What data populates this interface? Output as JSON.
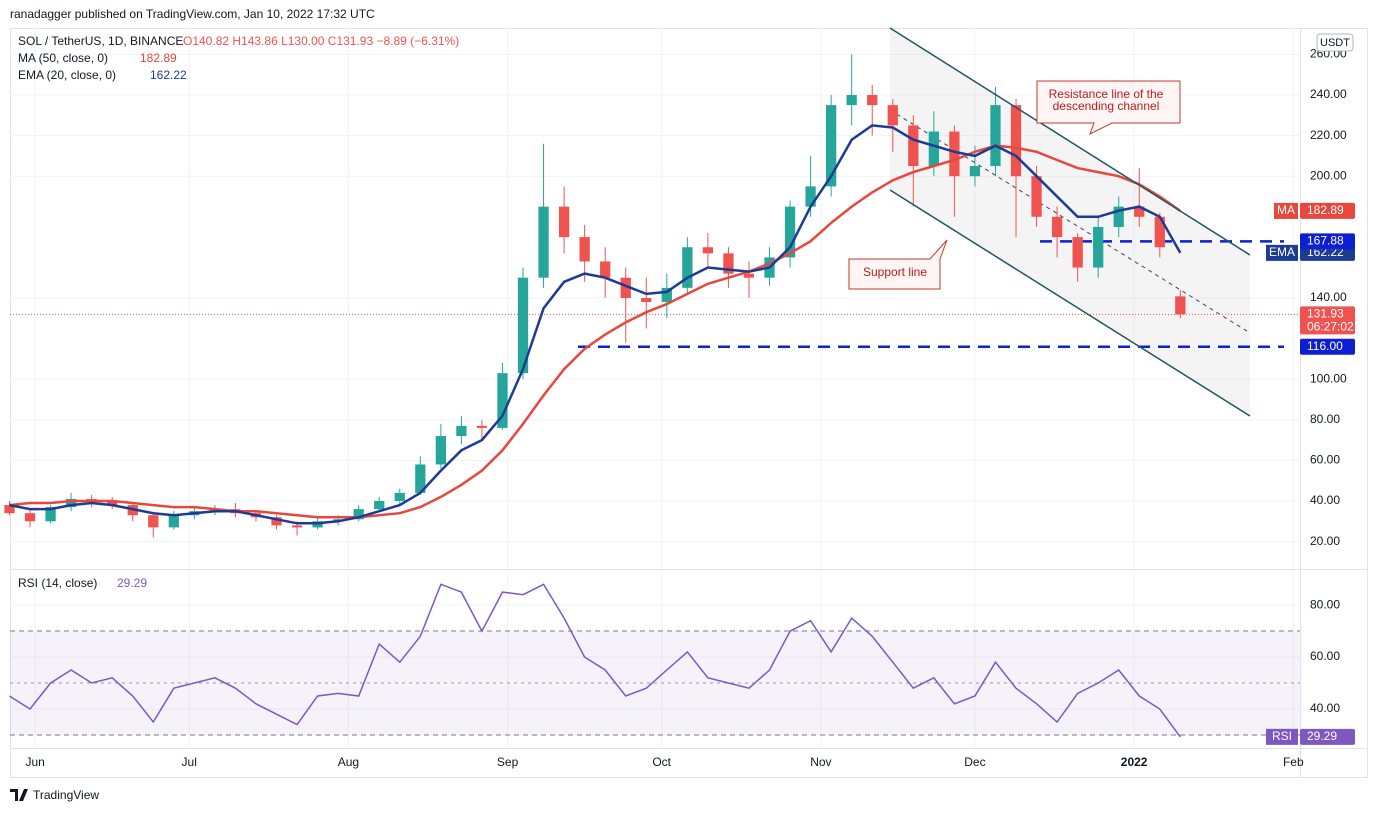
{
  "header": {
    "title": "ranadagger published on TradingView.com, Jan 10, 2022 17:32 UTC",
    "brand": "TradingView"
  },
  "chart_data": [
    {
      "type": "candlestick",
      "title": "SOL / TetherUS, 1D, BINANCE",
      "ohlc_label": "O140.82 H143.86 L130.00 C131.93 −8.89 (−6.31%)",
      "currency": "USDT",
      "x": [
        -5,
        -1,
        3,
        7,
        11,
        15,
        19,
        23,
        27,
        31,
        35,
        39,
        43,
        47,
        51,
        55,
        59,
        63,
        67,
        71,
        75,
        79,
        83,
        87,
        91,
        95,
        99,
        103,
        107,
        111,
        115,
        119,
        123,
        127,
        131,
        135,
        139,
        143,
        147,
        151,
        155,
        159,
        163,
        167,
        171,
        175,
        179,
        183,
        187,
        191,
        195,
        199,
        203,
        207,
        211,
        215,
        219,
        223
      ],
      "open": [
        38,
        34,
        30,
        37,
        41,
        40,
        38,
        33,
        27,
        33,
        35,
        36,
        34,
        32,
        28,
        27,
        30,
        31,
        36,
        40,
        44,
        58,
        72,
        77,
        76,
        103,
        150,
        185,
        170,
        158,
        150,
        140,
        138,
        145,
        165,
        162,
        152,
        150,
        160,
        185,
        195,
        235,
        240,
        235,
        225,
        205,
        222,
        200,
        205,
        235,
        200,
        180,
        170,
        155,
        175,
        185,
        180,
        140.82
      ],
      "high": [
        40,
        36,
        38,
        44,
        43,
        42,
        39,
        34,
        35,
        37,
        38,
        39,
        35,
        33,
        30,
        32,
        33,
        38,
        42,
        46,
        62,
        78,
        82,
        80,
        108,
        155,
        216,
        195,
        176,
        165,
        155,
        150,
        152,
        170,
        172,
        165,
        158,
        165,
        188,
        210,
        240,
        260,
        245,
        238,
        230,
        232,
        225,
        215,
        244,
        238,
        205,
        185,
        172,
        180,
        190,
        204,
        182,
        143.86
      ],
      "low": [
        33,
        27,
        29,
        35,
        37,
        36,
        30,
        22,
        26,
        31,
        33,
        32,
        30,
        26,
        23,
        26,
        28,
        30,
        35,
        38,
        43,
        56,
        68,
        70,
        75,
        100,
        145,
        162,
        148,
        140,
        118,
        125,
        130,
        142,
        155,
        145,
        140,
        146,
        155,
        180,
        190,
        225,
        220,
        212,
        185,
        200,
        180,
        195,
        200,
        170,
        175,
        160,
        148,
        150,
        170,
        175,
        160,
        130
      ],
      "close": [
        34,
        30,
        37,
        41,
        40,
        38,
        33,
        27,
        33,
        35,
        36,
        34,
        32,
        28,
        27,
        30,
        31,
        36,
        40,
        44,
        58,
        72,
        77,
        76,
        103,
        150,
        185,
        170,
        158,
        150,
        140,
        138,
        145,
        165,
        162,
        152,
        150,
        160,
        185,
        195,
        235,
        240,
        235,
        225,
        205,
        222,
        200,
        205,
        235,
        200,
        180,
        170,
        155,
        175,
        185,
        180,
        165,
        131.93
      ],
      "up_color": "#26a69a",
      "down_color": "#ef5350",
      "series": [
        {
          "name": "MA (50, close, 0)",
          "tag": "MA",
          "color": "#e8473c",
          "values": [
            38,
            39,
            39,
            40,
            40,
            40,
            39,
            38,
            37,
            37,
            36,
            35,
            35,
            34,
            33,
            32,
            32,
            32,
            33,
            34,
            37,
            42,
            48,
            55,
            65,
            78,
            92,
            105,
            115,
            122,
            128,
            133,
            137,
            142,
            147,
            150,
            153,
            157,
            162,
            168,
            177,
            185,
            192,
            198,
            202,
            205,
            208,
            212,
            215,
            214,
            212,
            208,
            204,
            202,
            200,
            196,
            190,
            182.89
          ]
        },
        {
          "name": "EMA (20, close, 0)",
          "tag": "EMA",
          "color": "#1c3b94",
          "values": [
            38,
            36,
            36,
            38,
            39,
            38,
            36,
            34,
            33,
            34,
            35,
            35,
            33,
            31,
            29,
            29,
            30,
            32,
            35,
            38,
            44,
            55,
            65,
            70,
            82,
            105,
            135,
            148,
            152,
            150,
            146,
            142,
            143,
            150,
            155,
            154,
            153,
            155,
            165,
            185,
            200,
            218,
            225,
            224,
            218,
            215,
            212,
            210,
            215,
            210,
            200,
            190,
            180,
            180,
            183,
            185,
            180,
            162.22
          ]
        }
      ],
      "levels": [
        167.88,
        {
          "value": 116,
          "label": "116.00"
        }
      ],
      "countdown": "06:27:02",
      "annotations": [
        "Resistance line of the",
        "descending channel",
        "Support line"
      ],
      "xlim": [
        -4.9,
        246.3
      ],
      "xticks": [
        {
          "value": 0,
          "label": "Jun"
        },
        {
          "value": 30,
          "label": "Jul"
        },
        {
          "value": 61,
          "label": "Aug"
        },
        {
          "value": 92,
          "label": "Sep"
        },
        {
          "value": 122,
          "label": "Oct"
        },
        {
          "value": 153,
          "label": "Nov"
        },
        {
          "value": 183,
          "label": "Dec"
        },
        {
          "value": 214,
          "label": "2022"
        },
        {
          "value": 245,
          "label": "Feb"
        }
      ],
      "ylim": [
        7,
        273
      ],
      "yticks": [
        {
          "value": 20,
          "label": "20.00"
        },
        {
          "value": 40,
          "label": "40.00"
        },
        {
          "value": 60,
          "label": "60.00"
        },
        {
          "value": 80,
          "label": "80.00"
        },
        {
          "value": 100,
          "label": "100.00"
        },
        {
          "value": 140,
          "label": "140.00"
        },
        {
          "value": 200,
          "label": "200.00"
        },
        {
          "value": 220,
          "label": "220.00"
        },
        {
          "value": 240,
          "label": "240.00"
        },
        {
          "value": 260,
          "label": "260.00"
        }
      ],
      "grid": true
    },
    {
      "type": "line",
      "title": "RSI (14, close)",
      "tag": "RSI",
      "color": "#7e57c2",
      "x": [
        -5,
        -1,
        3,
        7,
        11,
        15,
        19,
        23,
        27,
        31,
        35,
        39,
        43,
        47,
        51,
        55,
        59,
        63,
        67,
        71,
        75,
        79,
        83,
        87,
        91,
        95,
        99,
        103,
        107,
        111,
        115,
        119,
        123,
        127,
        131,
        135,
        139,
        143,
        147,
        151,
        155,
        159,
        163,
        167,
        171,
        175,
        179,
        183,
        187,
        191,
        195,
        199,
        203,
        207,
        211,
        215,
        219,
        223
      ],
      "values": [
        45,
        40,
        50,
        55,
        50,
        52,
        45,
        35,
        48,
        50,
        52,
        48,
        42,
        38,
        34,
        45,
        46,
        45,
        65,
        58,
        68,
        88,
        85,
        70,
        85,
        84,
        88,
        75,
        60,
        55,
        45,
        48,
        55,
        62,
        52,
        50,
        48,
        55,
        70,
        74,
        62,
        75,
        68,
        58,
        48,
        52,
        42,
        45,
        58,
        48,
        42,
        35,
        46,
        50,
        55,
        45,
        40,
        29.29
      ],
      "xlim": [
        -4.9,
        246.3
      ],
      "ylim": [
        25,
        93.5
      ],
      "yticks": [
        {
          "value": 40,
          "label": "40.00"
        },
        {
          "value": 60,
          "label": "60.00"
        },
        {
          "value": 80,
          "label": "80.00"
        }
      ],
      "grid": true
    }
  ]
}
